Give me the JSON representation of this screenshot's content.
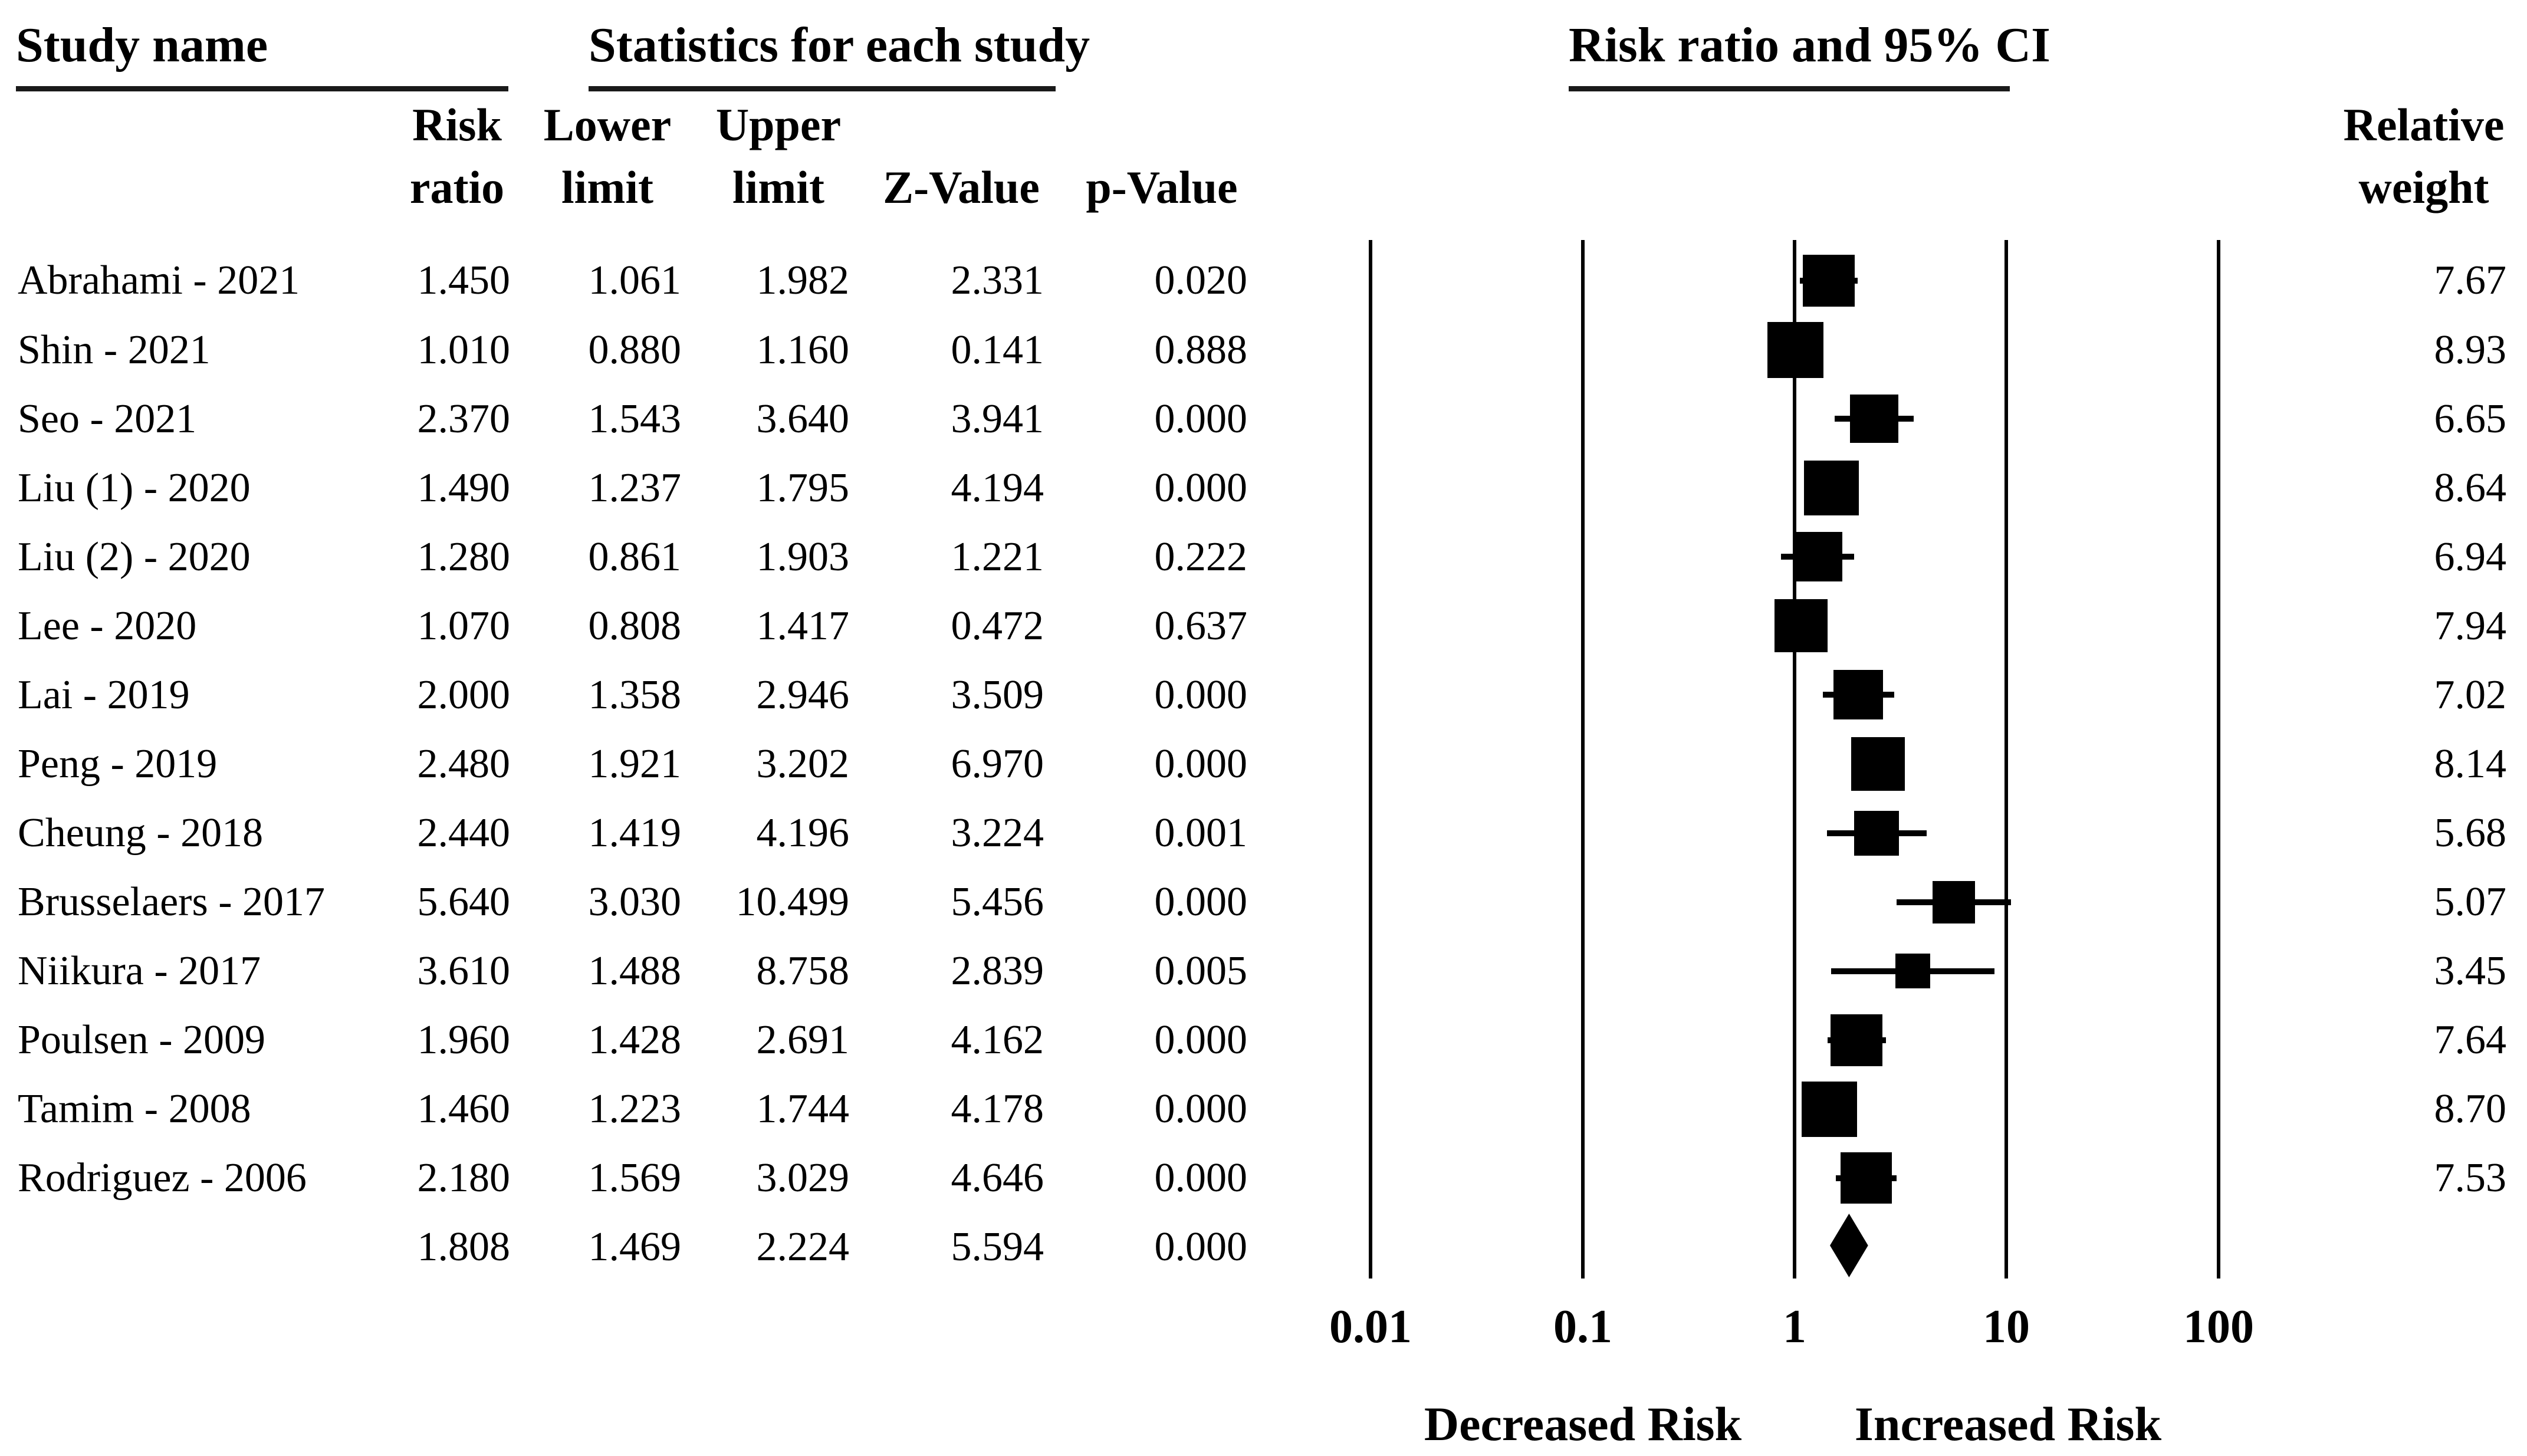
{
  "headers": {
    "study": "Study name",
    "statistics": "Statistics for each study",
    "plot": "Risk ratio and 95% CI"
  },
  "column_headers": {
    "risk": [
      "Risk",
      "ratio"
    ],
    "lower": [
      "Lower",
      "limit"
    ],
    "upper": [
      "Upper",
      "limit"
    ],
    "z": "Z-Value",
    "p": "p-Value",
    "weight": [
      "Relative",
      "weight"
    ]
  },
  "axis": {
    "tick_labels": [
      "0.01",
      "0.1",
      "1",
      "10",
      "100"
    ],
    "decreased": "Decreased Risk",
    "increased": "Increased Risk"
  },
  "colors": {
    "ink": "#000000",
    "background": "#ffffff"
  },
  "chart_data": {
    "type": "scatter",
    "variant": "forest-plot",
    "title": "Risk ratio and 95% CI",
    "x_scale": "log10",
    "x_range": [
      0.01,
      100
    ],
    "x_ticks": [
      0.01,
      0.1,
      1,
      10,
      100
    ],
    "x_tick_labels": [
      "0.01",
      "0.1",
      "1",
      "10",
      "100"
    ],
    "x_axis_left_label": "Decreased Risk",
    "x_axis_right_label": "Increased Risk",
    "marker_note": "black squares sized by relative weight, horizontal CI whiskers, summary diamond",
    "studies": [
      {
        "name": "Abrahami - 2021",
        "risk_ratio": 1.45,
        "lower": 1.061,
        "upper": 1.982,
        "z": 2.331,
        "p": 0.02,
        "weight": 7.67
      },
      {
        "name": "Shin - 2021",
        "risk_ratio": 1.01,
        "lower": 0.88,
        "upper": 1.16,
        "z": 0.141,
        "p": 0.888,
        "weight": 8.93
      },
      {
        "name": "Seo - 2021",
        "risk_ratio": 2.37,
        "lower": 1.543,
        "upper": 3.64,
        "z": 3.941,
        "p": 0.0,
        "weight": 6.65
      },
      {
        "name": "Liu (1) - 2020",
        "risk_ratio": 1.49,
        "lower": 1.237,
        "upper": 1.795,
        "z": 4.194,
        "p": 0.0,
        "weight": 8.64
      },
      {
        "name": "Liu (2) - 2020",
        "risk_ratio": 1.28,
        "lower": 0.861,
        "upper": 1.903,
        "z": 1.221,
        "p": 0.222,
        "weight": 6.94
      },
      {
        "name": "Lee - 2020",
        "risk_ratio": 1.07,
        "lower": 0.808,
        "upper": 1.417,
        "z": 0.472,
        "p": 0.637,
        "weight": 7.94
      },
      {
        "name": "Lai - 2019",
        "risk_ratio": 2.0,
        "lower": 1.358,
        "upper": 2.946,
        "z": 3.509,
        "p": 0.0,
        "weight": 7.02
      },
      {
        "name": "Peng - 2019",
        "risk_ratio": 2.48,
        "lower": 1.921,
        "upper": 3.202,
        "z": 6.97,
        "p": 0.0,
        "weight": 8.14
      },
      {
        "name": "Cheung - 2018",
        "risk_ratio": 2.44,
        "lower": 1.419,
        "upper": 4.196,
        "z": 3.224,
        "p": 0.001,
        "weight": 5.68
      },
      {
        "name": "Brusselaers - 2017",
        "risk_ratio": 5.64,
        "lower": 3.03,
        "upper": 10.499,
        "z": 5.456,
        "p": 0.0,
        "weight": 5.07
      },
      {
        "name": "Niikura - 2017",
        "risk_ratio": 3.61,
        "lower": 1.488,
        "upper": 8.758,
        "z": 2.839,
        "p": 0.005,
        "weight": 3.45
      },
      {
        "name": "Poulsen - 2009",
        "risk_ratio": 1.96,
        "lower": 1.428,
        "upper": 2.691,
        "z": 4.162,
        "p": 0.0,
        "weight": 7.64
      },
      {
        "name": "Tamim - 2008",
        "risk_ratio": 1.46,
        "lower": 1.223,
        "upper": 1.744,
        "z": 4.178,
        "p": 0.0,
        "weight": 8.7
      },
      {
        "name": "Rodriguez - 2006",
        "risk_ratio": 2.18,
        "lower": 1.569,
        "upper": 3.029,
        "z": 4.646,
        "p": 0.0,
        "weight": 7.53
      }
    ],
    "summary": {
      "risk_ratio": 1.808,
      "lower": 1.469,
      "upper": 2.224,
      "z": 5.594,
      "p": 0.0
    }
  }
}
